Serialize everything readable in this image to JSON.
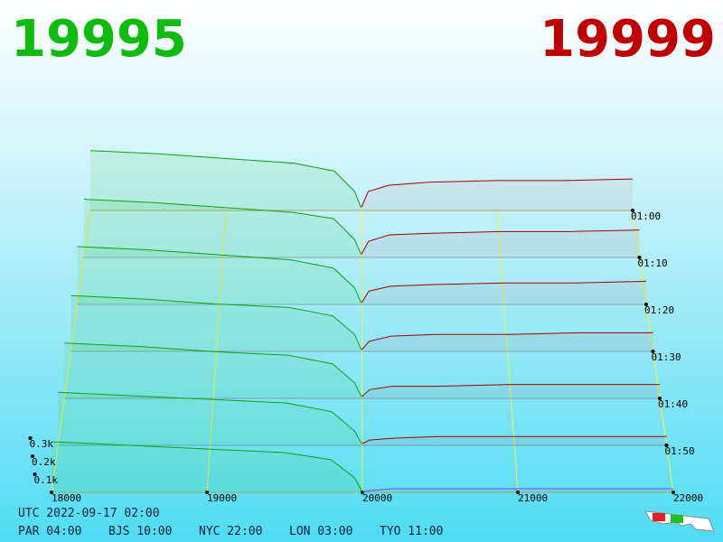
{
  "header": {
    "bid": 19995,
    "ask": 19999
  },
  "price_ticks": [
    18000,
    19000,
    20000,
    21000,
    22000
  ],
  "depth_ticks": [
    {
      "value": 0.1,
      "label": "0.1k"
    },
    {
      "value": 0.2,
      "label": "0.2k"
    },
    {
      "value": 0.3,
      "label": "0.3k"
    }
  ],
  "bid_prices": [
    18000,
    18500,
    19000,
    19500,
    19800,
    19950,
    19995
  ],
  "ask_prices": [
    19999,
    20050,
    20200,
    20500,
    21000,
    21500,
    22000
  ],
  "rows": [
    {
      "time": "01:00",
      "bids": [
        0.38,
        0.36,
        0.33,
        0.3,
        0.25,
        0.12,
        0.02
      ],
      "asks": [
        0.02,
        0.12,
        0.16,
        0.18,
        0.19,
        0.19,
        0.2
      ]
    },
    {
      "time": "01:10",
      "bids": [
        0.36,
        0.34,
        0.31,
        0.28,
        0.24,
        0.11,
        0.02
      ],
      "asks": [
        0.02,
        0.1,
        0.14,
        0.15,
        0.16,
        0.16,
        0.17
      ]
    },
    {
      "time": "01:20",
      "bids": [
        0.35,
        0.33,
        0.3,
        0.27,
        0.22,
        0.1,
        0.01
      ],
      "asks": [
        0.01,
        0.08,
        0.11,
        0.12,
        0.13,
        0.13,
        0.14
      ]
    },
    {
      "time": "01:30",
      "bids": [
        0.33,
        0.31,
        0.28,
        0.26,
        0.21,
        0.1,
        0.01
      ],
      "asks": [
        0.01,
        0.06,
        0.09,
        0.1,
        0.1,
        0.11,
        0.11
      ]
    },
    {
      "time": "01:40",
      "bids": [
        0.32,
        0.3,
        0.27,
        0.25,
        0.2,
        0.09,
        0.01
      ],
      "asks": [
        0.01,
        0.05,
        0.07,
        0.07,
        0.08,
        0.08,
        0.08
      ]
    },
    {
      "time": "01:50",
      "bids": [
        0.3,
        0.28,
        0.26,
        0.24,
        0.19,
        0.08,
        0.01
      ],
      "asks": [
        0.01,
        0.03,
        0.04,
        0.05,
        0.05,
        0.05,
        0.05
      ]
    },
    {
      "time": null,
      "bids": [
        0.28,
        0.26,
        0.24,
        0.22,
        0.18,
        0.08,
        0.01
      ],
      "asks": [
        0,
        0.01,
        0.02,
        0.02,
        0.02,
        0.02,
        0.02
      ]
    }
  ],
  "footer": {
    "utc": "UTC 2022-09-17 02:00",
    "cities": [
      "PAR 04:00",
      "BJS 10:00",
      "NYC 22:00",
      "LON 03:00",
      "TYO 11:00"
    ]
  }
}
